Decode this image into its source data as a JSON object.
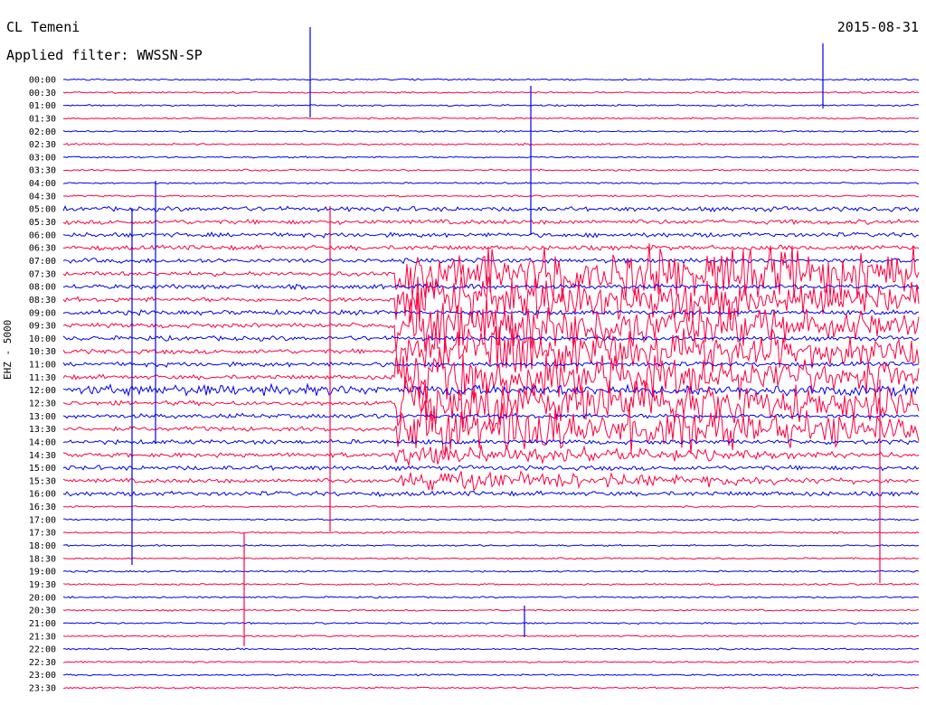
{
  "header": {
    "station": "CL Temeni",
    "date": "2015-08-31",
    "filter": "Applied filter: WWSSN-SP"
  },
  "chart_data": {
    "type": "line",
    "title": "CL Temeni",
    "subtitle": "Applied filter: WWSSN-SP",
    "date": "2015-08-31",
    "ylabel": "EHZ - 5000",
    "xlabel": "",
    "row_labels": [
      "00:00",
      "00:30",
      "01:00",
      "01:30",
      "02:00",
      "02:30",
      "03:00",
      "03:30",
      "04:00",
      "04:30",
      "05:00",
      "05:30",
      "06:00",
      "06:30",
      "07:00",
      "07:30",
      "08:00",
      "08:30",
      "09:00",
      "09:30",
      "10:00",
      "10:30",
      "11:00",
      "11:30",
      "12:00",
      "12:30",
      "13:00",
      "13:30",
      "14:00",
      "14:30",
      "15:00",
      "15:30",
      "16:00",
      "16:30",
      "17:00",
      "17:30",
      "18:00",
      "18:30",
      "19:00",
      "19:30",
      "20:00",
      "20:30",
      "21:00",
      "21:30",
      "22:00",
      "22:30",
      "23:00",
      "23:30"
    ],
    "series_colors": {
      "even": "#0000ee",
      "odd": "#ff0040"
    },
    "grid": false,
    "events": [
      {
        "row_start": "07:00",
        "row_end": "15:30",
        "description": "large sustained signal"
      },
      {
        "row_start": "19:30",
        "row_end": "20:00",
        "description": "spike"
      },
      {
        "row_start": "21:00",
        "row_end": "21:00",
        "description": "spike"
      },
      {
        "row_start": "14:00",
        "row_end": "18:30",
        "description": "spike"
      }
    ]
  }
}
